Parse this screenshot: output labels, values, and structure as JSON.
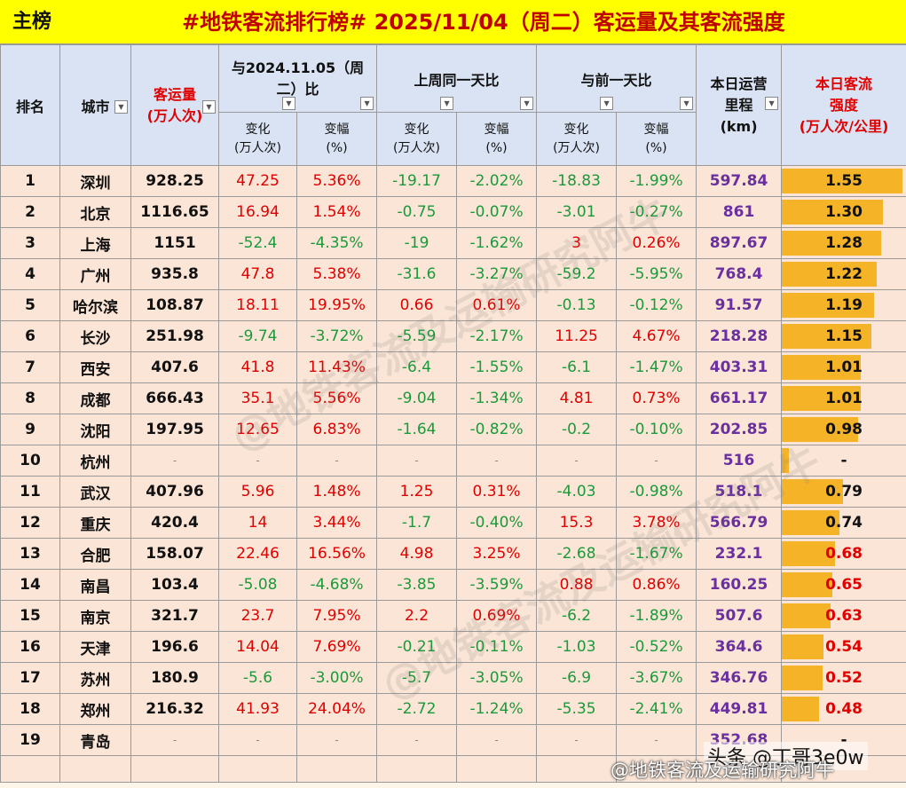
{
  "title": {
    "tag": "主榜",
    "main": "#地铁客流排行榜# 2025/11/04（周二）客运量及其客流强度"
  },
  "headers": {
    "rank": "排名",
    "city": "城市",
    "volume": "客运量\n(万人次)",
    "yoy_group": "与2024.11.05（周\n二）比",
    "lastweek_group": "上周同一天比",
    "prevday_group": "与前一天比",
    "change": "变化\n(万人次)",
    "pct": "变幅\n(%)",
    "mileage": "本日运营\n里程\n(km)",
    "intensity": "本日客流\n强度\n(万人次/公里)"
  },
  "colors": {
    "title_bg": "#ffff00",
    "header_bg": "#d9e3f3",
    "row_bg": "#fbe5d6",
    "increase": "#e00000",
    "decrease": "#1a9a3a",
    "mileage": "#6a2fa0",
    "intensity_bar": "#f5b428"
  },
  "rows": [
    {
      "rank": "1",
      "city": "深圳",
      "volume": "928.25",
      "yoy_chg": "47.25",
      "yoy_pct": "5.36%",
      "wk_chg": "-19.17",
      "wk_pct": "-2.02%",
      "day_chg": "-18.83",
      "day_pct": "-1.99%",
      "mileage": "597.84",
      "intensity": "1.55"
    },
    {
      "rank": "2",
      "city": "北京",
      "volume": "1116.65",
      "yoy_chg": "16.94",
      "yoy_pct": "1.54%",
      "wk_chg": "-0.75",
      "wk_pct": "-0.07%",
      "day_chg": "-3.01",
      "day_pct": "-0.27%",
      "mileage": "861",
      "intensity": "1.30"
    },
    {
      "rank": "3",
      "city": "上海",
      "volume": "1151",
      "yoy_chg": "-52.4",
      "yoy_pct": "-4.35%",
      "wk_chg": "-19",
      "wk_pct": "-1.62%",
      "day_chg": "3",
      "day_pct": "0.26%",
      "mileage": "897.67",
      "intensity": "1.28"
    },
    {
      "rank": "4",
      "city": "广州",
      "volume": "935.8",
      "yoy_chg": "47.8",
      "yoy_pct": "5.38%",
      "wk_chg": "-31.6",
      "wk_pct": "-3.27%",
      "day_chg": "-59.2",
      "day_pct": "-5.95%",
      "mileage": "768.4",
      "intensity": "1.22"
    },
    {
      "rank": "5",
      "city": "哈尔滨",
      "volume": "108.87",
      "yoy_chg": "18.11",
      "yoy_pct": "19.95%",
      "wk_chg": "0.66",
      "wk_pct": "0.61%",
      "day_chg": "-0.13",
      "day_pct": "-0.12%",
      "mileage": "91.57",
      "intensity": "1.19"
    },
    {
      "rank": "6",
      "city": "长沙",
      "volume": "251.98",
      "yoy_chg": "-9.74",
      "yoy_pct": "-3.72%",
      "wk_chg": "-5.59",
      "wk_pct": "-2.17%",
      "day_chg": "11.25",
      "day_pct": "4.67%",
      "mileage": "218.28",
      "intensity": "1.15"
    },
    {
      "rank": "7",
      "city": "西安",
      "volume": "407.6",
      "yoy_chg": "41.8",
      "yoy_pct": "11.43%",
      "wk_chg": "-6.4",
      "wk_pct": "-1.55%",
      "day_chg": "-6.1",
      "day_pct": "-1.47%",
      "mileage": "403.31",
      "intensity": "1.01"
    },
    {
      "rank": "8",
      "city": "成都",
      "volume": "666.43",
      "yoy_chg": "35.1",
      "yoy_pct": "5.56%",
      "wk_chg": "-9.04",
      "wk_pct": "-1.34%",
      "day_chg": "4.81",
      "day_pct": "0.73%",
      "mileage": "661.17",
      "intensity": "1.01"
    },
    {
      "rank": "9",
      "city": "沈阳",
      "volume": "197.95",
      "yoy_chg": "12.65",
      "yoy_pct": "6.83%",
      "wk_chg": "-1.64",
      "wk_pct": "-0.82%",
      "day_chg": "-0.2",
      "day_pct": "-0.10%",
      "mileage": "202.85",
      "intensity": "0.98"
    },
    {
      "rank": "10",
      "city": "杭州",
      "volume": "-",
      "yoy_chg": "-",
      "yoy_pct": "-",
      "wk_chg": "-",
      "wk_pct": "-",
      "day_chg": "-",
      "day_pct": "-",
      "mileage": "516",
      "intensity": "-"
    },
    {
      "rank": "11",
      "city": "武汉",
      "volume": "407.96",
      "yoy_chg": "5.96",
      "yoy_pct": "1.48%",
      "wk_chg": "1.25",
      "wk_pct": "0.31%",
      "day_chg": "-4.03",
      "day_pct": "-0.98%",
      "mileage": "518.1",
      "intensity": "0.79"
    },
    {
      "rank": "12",
      "city": "重庆",
      "volume": "420.4",
      "yoy_chg": "14",
      "yoy_pct": "3.44%",
      "wk_chg": "-1.7",
      "wk_pct": "-0.40%",
      "day_chg": "15.3",
      "day_pct": "3.78%",
      "mileage": "566.79",
      "intensity": "0.74"
    },
    {
      "rank": "13",
      "city": "合肥",
      "volume": "158.07",
      "yoy_chg": "22.46",
      "yoy_pct": "16.56%",
      "wk_chg": "4.98",
      "wk_pct": "3.25%",
      "day_chg": "-2.68",
      "day_pct": "-1.67%",
      "mileage": "232.1",
      "intensity": "0.68"
    },
    {
      "rank": "14",
      "city": "南昌",
      "volume": "103.4",
      "yoy_chg": "-5.08",
      "yoy_pct": "-4.68%",
      "wk_chg": "-3.85",
      "wk_pct": "-3.59%",
      "day_chg": "0.88",
      "day_pct": "0.86%",
      "mileage": "160.25",
      "intensity": "0.65"
    },
    {
      "rank": "15",
      "city": "南京",
      "volume": "321.7",
      "yoy_chg": "23.7",
      "yoy_pct": "7.95%",
      "wk_chg": "2.2",
      "wk_pct": "0.69%",
      "day_chg": "-6.2",
      "day_pct": "-1.89%",
      "mileage": "507.6",
      "intensity": "0.63"
    },
    {
      "rank": "16",
      "city": "天津",
      "volume": "196.6",
      "yoy_chg": "14.04",
      "yoy_pct": "7.69%",
      "wk_chg": "-0.21",
      "wk_pct": "-0.11%",
      "day_chg": "-1.03",
      "day_pct": "-0.52%",
      "mileage": "364.6",
      "intensity": "0.54"
    },
    {
      "rank": "17",
      "city": "苏州",
      "volume": "180.9",
      "yoy_chg": "-5.6",
      "yoy_pct": "-3.00%",
      "wk_chg": "-5.7",
      "wk_pct": "-3.05%",
      "day_chg": "-6.9",
      "day_pct": "-3.67%",
      "mileage": "346.76",
      "intensity": "0.52"
    },
    {
      "rank": "18",
      "city": "郑州",
      "volume": "216.32",
      "yoy_chg": "41.93",
      "yoy_pct": "24.04%",
      "wk_chg": "-2.72",
      "wk_pct": "-1.24%",
      "day_chg": "-5.35",
      "day_pct": "-2.41%",
      "mileage": "449.81",
      "intensity": "0.48"
    },
    {
      "rank": "19",
      "city": "青岛",
      "volume": "-",
      "yoy_chg": "-",
      "yoy_pct": "-",
      "wk_chg": "-",
      "wk_pct": "-",
      "day_chg": "-",
      "day_pct": "-",
      "mileage": "352.68",
      "intensity": "-"
    }
  ],
  "watermark": "@地铁客流及运输研究阿牛",
  "credits": {
    "line1": "头条 @丁哥3e0w",
    "line2": "@地铁客流及运输研究阿牛"
  }
}
